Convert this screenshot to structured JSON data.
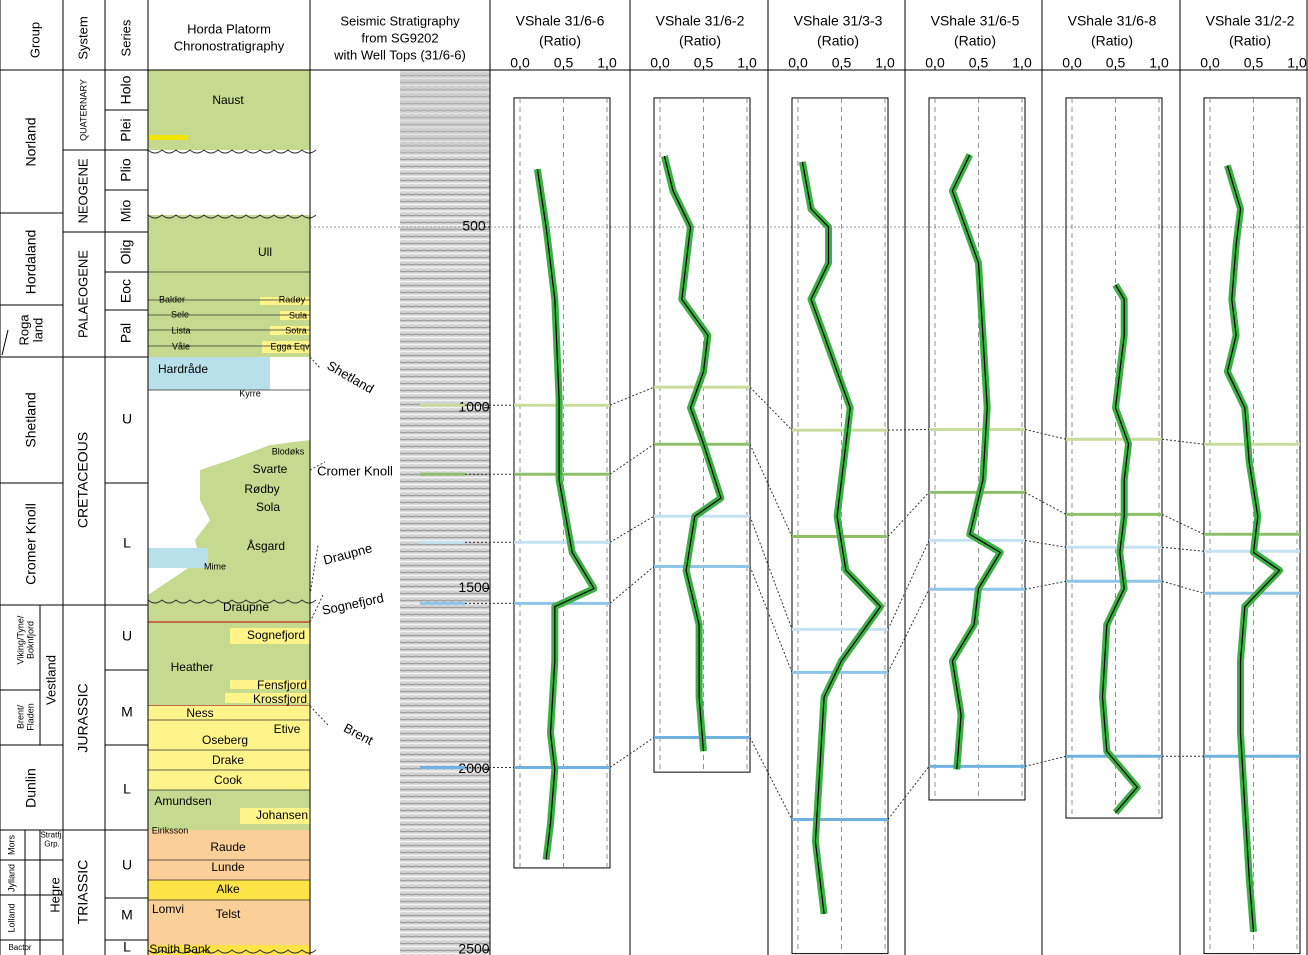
{
  "header": {
    "group": "Group",
    "system": "System",
    "series": "Series",
    "chrono": [
      "Horda Platorm",
      "Chronostratigraphy"
    ],
    "seismic": [
      "Seismic Stratigraphy",
      "from SG9202",
      "with Well Tops (31/6-6)"
    ]
  },
  "groups": [
    [
      "Norland"
    ],
    [
      "Hordaland"
    ],
    [
      "Roga",
      "land"
    ],
    [
      "Shetland"
    ],
    [
      "Cromer Knoll"
    ],
    [
      "Viking/Tyne/",
      "Boknfjord"
    ],
    [
      "Brent/",
      "Fladen"
    ],
    [
      "Vestland"
    ],
    [
      "Dunlin"
    ],
    [
      "Mors"
    ],
    [
      "Stratfj.",
      "Grp."
    ],
    [
      "Jylland"
    ],
    [
      "Lolland"
    ],
    [
      "Hegre"
    ],
    [
      "Bactor"
    ]
  ],
  "systems": [
    "QUATERNARY",
    "NEOGENE",
    "PALAEOGENE",
    "CRETACEOUS",
    "JURASSIC",
    "TRIASSIC"
  ],
  "series": [
    "Holo",
    "Plei",
    "Plio",
    "Mio",
    "Olig",
    "Eoc",
    "Pal",
    "U",
    "L",
    "U",
    "M",
    "L",
    "U",
    "M",
    "L"
  ],
  "formations": [
    "Naust",
    "Ull",
    "Balder",
    "Radøy",
    "Sele",
    "Sula",
    "Lista",
    "Sotra",
    "Våle",
    "Egga Eqv",
    "Hardråde",
    "Kyrre",
    "Blodøks",
    "Svarte",
    "Rødby",
    "Sola",
    "Åsgard",
    "Mime",
    "Draupne",
    "Sognefjord",
    "Heather",
    "Fensfjord",
    "Krossfjord",
    "Ness",
    "Etive",
    "Oseberg",
    "Drake",
    "Cook",
    "Amundsen",
    "Johansen",
    "Eiriksson",
    "Raude",
    "Lunde",
    "Alke",
    "Lomvi",
    "Telst",
    "Smith Bank"
  ],
  "depth_ticks": [
    500,
    1000,
    1500,
    2000,
    2500
  ],
  "well_tops": {
    "names": [
      "Shetland",
      "Cromer Knoll",
      "Draupne",
      "Sognefjord",
      "Brent"
    ],
    "colors": [
      "#c9dc9c",
      "#8fbf6a",
      "#c6e2f2",
      "#8ec4e6",
      "#6fb2e0"
    ],
    "seismic_depths": [
      993,
      1184,
      1372,
      1541,
      1995
    ]
  },
  "log_xlim": [
    0,
    1
  ],
  "log_xticks": [
    {
      "value": 0,
      "label": "0.0"
    },
    {
      "value": 0.5,
      "label": "0.5"
    },
    {
      "value": 1,
      "label": "1.0"
    }
  ],
  "wells": [
    {
      "name": "VShale 31/6-6",
      "unit": "(Ratio)",
      "interval": [
        143,
        2273
      ],
      "tops": [
        993,
        1184,
        1372,
        1541,
        1995
      ],
      "depths": [
        340,
        500,
        700,
        977,
        1200,
        1400,
        1500,
        1550,
        1700,
        1900,
        2000,
        2150,
        2250
      ],
      "vshale": [
        0.2,
        0.3,
        0.4,
        0.45,
        0.45,
        0.6,
        0.85,
        0.4,
        0.4,
        0.35,
        0.4,
        0.35,
        0.3
      ]
    },
    {
      "name": "VShale 31/6-2",
      "unit": "(Ratio)",
      "interval": [
        143,
        2008
      ],
      "tops": [
        943,
        1101,
        1300,
        1439,
        1912
      ],
      "depths": [
        304,
        400,
        500,
        600,
        700,
        800,
        900,
        1000,
        1100,
        1250,
        1300,
        1450,
        1600,
        1800,
        1950
      ],
      "vshale": [
        0.05,
        0.15,
        0.35,
        0.3,
        0.25,
        0.55,
        0.5,
        0.35,
        0.5,
        0.7,
        0.4,
        0.3,
        0.45,
        0.45,
        0.5
      ]
    },
    {
      "name": "VShale 31/3-3",
      "unit": "(Ratio)",
      "interval": [
        143,
        2510
      ],
      "tops": [
        1062,
        1356,
        1613,
        1732,
        2139
      ],
      "depths": [
        320,
        450,
        500,
        600,
        700,
        800,
        900,
        1000,
        1100,
        1300,
        1450,
        1550,
        1700,
        1800,
        2000,
        2200,
        2400
      ],
      "vshale": [
        0.05,
        0.15,
        0.35,
        0.35,
        0.15,
        0.3,
        0.45,
        0.6,
        0.55,
        0.45,
        0.55,
        0.95,
        0.5,
        0.3,
        0.25,
        0.2,
        0.3
      ]
    },
    {
      "name": "VShale 31/6-5",
      "unit": "(Ratio)",
      "interval": [
        143,
        2085
      ],
      "tops": [
        1060,
        1234,
        1367,
        1502,
        1992
      ],
      "depths": [
        300,
        400,
        500,
        600,
        800,
        1000,
        1200,
        1350,
        1400,
        1500,
        1600,
        1700,
        1850,
        2000
      ],
      "vshale": [
        0.4,
        0.2,
        0.35,
        0.5,
        0.55,
        0.6,
        0.55,
        0.4,
        0.75,
        0.5,
        0.45,
        0.2,
        0.3,
        0.25
      ]
    },
    {
      "name": "VShale 31/6-8",
      "unit": "(Ratio)",
      "interval": [
        143,
        2135
      ],
      "tops": [
        1087,
        1295,
        1386,
        1480,
        1964
      ],
      "depths": [
        660,
        700,
        800,
        900,
        1000,
        1100,
        1200,
        1300,
        1400,
        1500,
        1600,
        1800,
        1950,
        2050,
        2120
      ],
      "vshale": [
        0.5,
        0.6,
        0.6,
        0.55,
        0.5,
        0.65,
        0.6,
        0.6,
        0.55,
        0.6,
        0.4,
        0.35,
        0.4,
        0.75,
        0.5
      ]
    },
    {
      "name": "VShale 31/2-2",
      "unit": "(Ratio)",
      "interval": [
        143,
        2510
      ],
      "tops": [
        1101,
        1350,
        1397,
        1513,
        1964
      ],
      "depths": [
        330,
        450,
        550,
        700,
        800,
        900,
        1000,
        1150,
        1300,
        1400,
        1450,
        1550,
        1700,
        1900,
        2100,
        2300,
        2450
      ],
      "vshale": [
        0.2,
        0.35,
        0.3,
        0.25,
        0.3,
        0.2,
        0.4,
        0.45,
        0.55,
        0.5,
        0.8,
        0.4,
        0.35,
        0.35,
        0.4,
        0.45,
        0.5
      ]
    }
  ]
}
